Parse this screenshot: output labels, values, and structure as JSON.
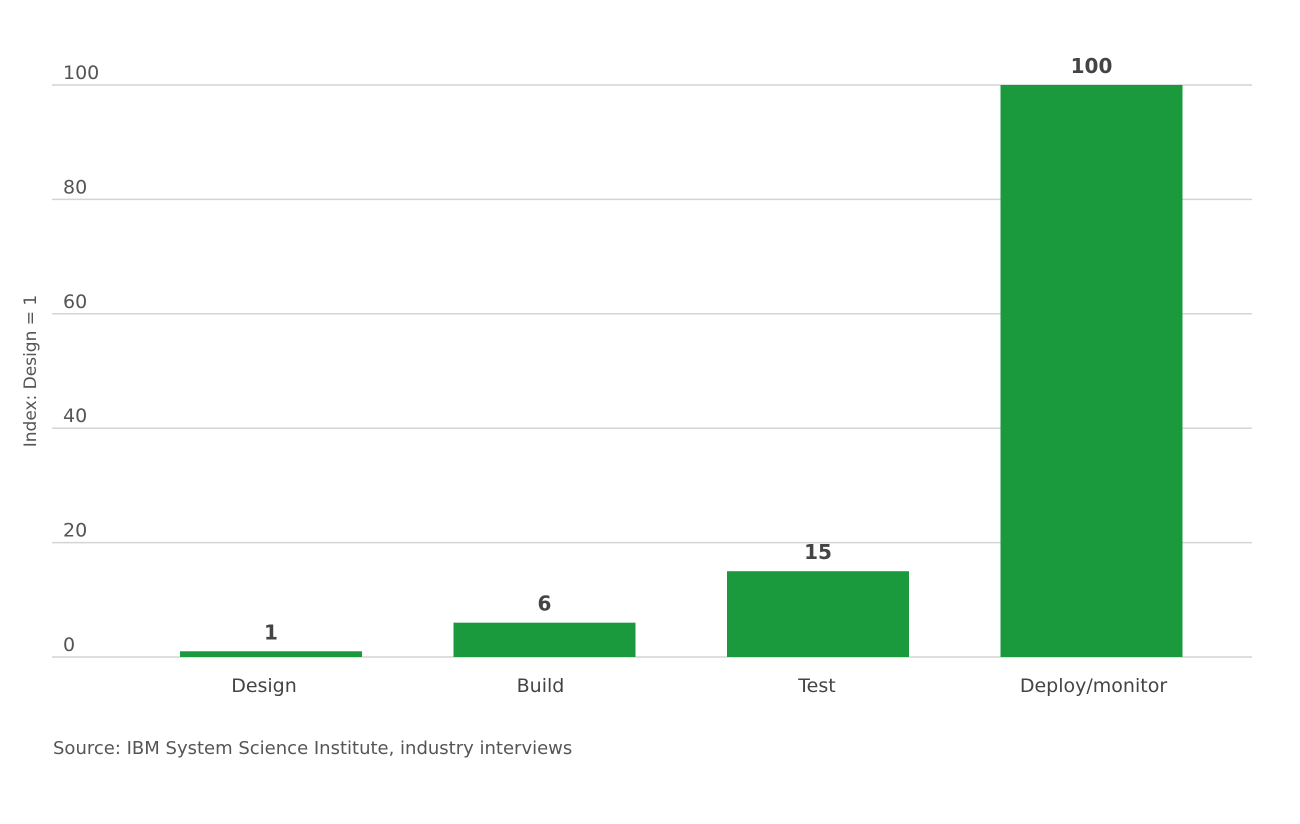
{
  "chart_data": {
    "type": "bar",
    "title": "",
    "xlabel": "",
    "ylabel": "Index: Design = 1",
    "categories": [
      "Design",
      "Build",
      "Test",
      "Deploy/monitor"
    ],
    "values": [
      1,
      6,
      15,
      100
    ],
    "data_labels": [
      "1",
      "6",
      "15",
      "100"
    ],
    "ylim": [
      0,
      100
    ],
    "yticks": [
      0,
      20,
      40,
      60,
      80,
      100
    ],
    "grid": true,
    "legend": "none",
    "bar_color": "#1a9a3c",
    "source": "Source: IBM System Science Institute, industry interviews"
  }
}
